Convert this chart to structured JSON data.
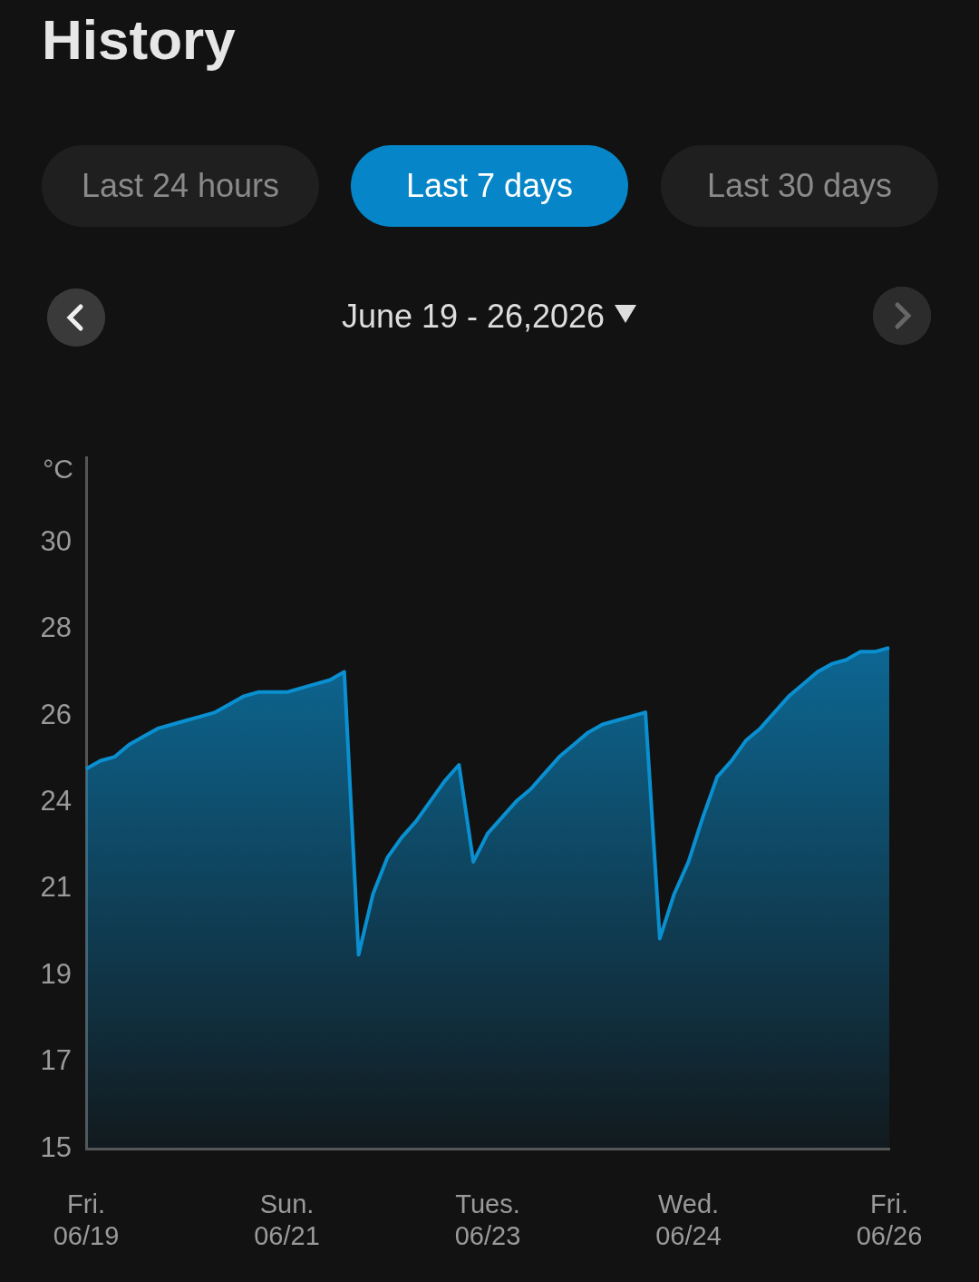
{
  "chart_data": {
    "type": "area",
    "title": "History",
    "ylabel": "°C",
    "annotations": [
      "Last 24 hours",
      "Last 7 days",
      "Last 30 days",
      "June 19 - 26,2026"
    ],
    "categories": [
      "Fri.\n06/19",
      null,
      null,
      null,
      null,
      null,
      null,
      null,
      null,
      null,
      null,
      null,
      null,
      null,
      "Sun.\n06/21",
      null,
      null,
      null,
      null,
      null,
      null,
      null,
      null,
      null,
      null,
      null,
      null,
      null,
      "Tues.\n06/23",
      null,
      null,
      null,
      null,
      null,
      null,
      null,
      null,
      null,
      null,
      null,
      null,
      null,
      "Wed.\n06/24",
      null,
      null,
      null,
      null,
      null,
      null,
      null,
      null,
      null,
      null,
      null,
      null,
      null,
      "Fri.\n06/26"
    ],
    "series": [
      {
        "color": "#0a8fd0",
        "values": [
          24.4,
          24.6,
          24.7,
          25.0,
          25.2,
          25.4,
          25.5,
          25.6,
          25.7,
          25.8,
          26.0,
          26.2,
          26.3,
          26.3,
          26.3,
          26.4,
          26.5,
          26.6,
          26.8,
          19.8,
          21.3,
          22.2,
          22.7,
          23.1,
          23.6,
          24.1,
          24.5,
          22.1,
          22.8,
          23.2,
          23.6,
          23.9,
          24.3,
          24.7,
          25.0,
          25.3,
          25.5,
          25.6,
          25.7,
          25.8,
          20.2,
          21.3,
          22.1,
          23.2,
          24.2,
          24.6,
          25.1,
          25.4,
          25.8,
          26.2,
          26.5,
          26.8,
          27.0,
          27.1,
          27.3,
          27.3,
          27.4
        ]
      }
    ],
    "ylim": [
      15,
      32.1
    ],
    "yticks": [
      15,
      {
        "value": 17.14,
        "label": "17"
      },
      {
        "value": 19.29,
        "label": "19"
      },
      {
        "value": 21.43,
        "label": "21"
      },
      {
        "value": 23.57,
        "label": "24"
      },
      {
        "value": 25.71,
        "label": "26"
      },
      {
        "value": 27.86,
        "label": "28"
      },
      30
    ],
    "grid": false,
    "legend": false,
    "marker": "none",
    "line_style": "solid"
  }
}
